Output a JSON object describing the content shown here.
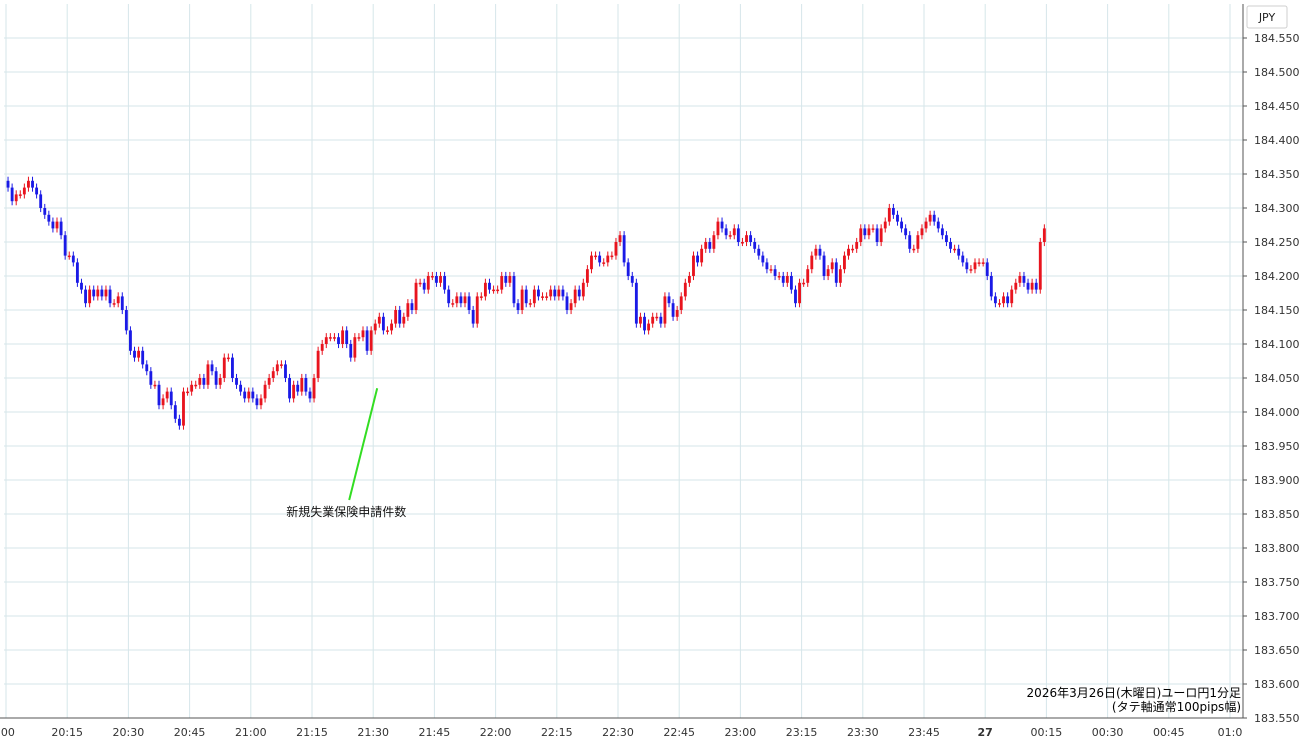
{
  "chart_data": {
    "type": "candlestick",
    "currency_label": "JPY",
    "info_lines": [
      "2026年3月26日(木曜日)ユーロ円1分足",
      "(タテ軸通常100pips幅)"
    ],
    "annotation": {
      "text": "新規失業保険申請件数",
      "time": "21:30",
      "price": 184.035
    },
    "ylim": [
      183.55,
      184.6
    ],
    "y_ticks": [
      "184.550",
      "184.500",
      "184.450",
      "184.400",
      "184.350",
      "184.300",
      "184.250",
      "184.200",
      "184.150",
      "184.100",
      "184.050",
      "184.000",
      "183.950",
      "183.900",
      "183.850",
      "183.800",
      "183.750",
      "183.700",
      "183.650",
      "183.600",
      "183.550"
    ],
    "x_ticks": [
      ":00",
      "20:15",
      "20:30",
      "20:45",
      "21:00",
      "21:15",
      "21:30",
      "21:45",
      "22:00",
      "22:15",
      "22:30",
      "22:45",
      "23:00",
      "23:15",
      "23:30",
      "23:45",
      "27",
      "00:15",
      "00:30",
      "00:45",
      "01:0"
    ],
    "x_tick_minutes": [
      0,
      15,
      30,
      45,
      60,
      75,
      90,
      105,
      120,
      135,
      150,
      165,
      180,
      195,
      210,
      225,
      240,
      255,
      270,
      285,
      300
    ],
    "start_time": "20:00",
    "colors": {
      "up": "#e8141e",
      "down": "#1a1ae6",
      "grid": "#d6e6ea",
      "annotation_line": "#33dd22",
      "axis": "#555555"
    },
    "closes": [
      184.33,
      184.31,
      184.32,
      184.32,
      184.33,
      184.34,
      184.33,
      184.32,
      184.3,
      184.29,
      184.28,
      184.27,
      184.28,
      184.26,
      184.23,
      184.23,
      184.22,
      184.19,
      184.18,
      184.16,
      184.18,
      184.17,
      184.18,
      184.17,
      184.18,
      184.16,
      184.16,
      184.17,
      184.15,
      184.12,
      184.09,
      184.08,
      184.09,
      184.07,
      184.06,
      184.04,
      184.04,
      184.01,
      184.02,
      184.03,
      184.01,
      183.99,
      183.98,
      184.03,
      184.03,
      184.04,
      184.04,
      184.05,
      184.04,
      184.07,
      184.06,
      184.04,
      184.05,
      184.08,
      184.08,
      184.05,
      184.04,
      184.03,
      184.02,
      184.03,
      184.02,
      184.01,
      184.02,
      184.04,
      184.05,
      184.06,
      184.07,
      184.07,
      184.05,
      184.02,
      184.04,
      184.03,
      184.05,
      184.03,
      184.02,
      184.05,
      184.09,
      184.1,
      184.11,
      184.11,
      184.11,
      184.1,
      184.12,
      184.1,
      184.08,
      184.11,
      184.11,
      184.12,
      184.09,
      184.12,
      184.13,
      184.14,
      184.12,
      184.12,
      184.13,
      184.15,
      184.13,
      184.14,
      184.16,
      184.15,
      184.19,
      184.19,
      184.18,
      184.2,
      184.2,
      184.19,
      184.2,
      184.18,
      184.16,
      184.16,
      184.17,
      184.16,
      184.17,
      184.15,
      184.13,
      184.17,
      184.17,
      184.19,
      184.18,
      184.18,
      184.18,
      184.2,
      184.19,
      184.2,
      184.16,
      184.15,
      184.18,
      184.16,
      184.16,
      184.18,
      184.17,
      184.17,
      184.17,
      184.18,
      184.17,
      184.18,
      184.17,
      184.15,
      184.16,
      184.18,
      184.17,
      184.19,
      184.21,
      184.23,
      184.23,
      184.22,
      184.22,
      184.23,
      184.23,
      184.25,
      184.26,
      184.22,
      184.2,
      184.19,
      184.13,
      184.14,
      184.12,
      184.13,
      184.14,
      184.14,
      184.13,
      184.17,
      184.16,
      184.14,
      184.15,
      184.17,
      184.19,
      184.2,
      184.23,
      184.22,
      184.24,
      184.25,
      184.24,
      184.26,
      184.28,
      184.27,
      184.26,
      184.26,
      184.27,
      184.25,
      184.25,
      184.26,
      184.25,
      184.24,
      184.23,
      184.22,
      184.21,
      184.21,
      184.2,
      184.2,
      184.19,
      184.2,
      184.18,
      184.16,
      184.19,
      184.19,
      184.21,
      184.23,
      184.24,
      184.23,
      184.2,
      184.21,
      184.22,
      184.19,
      184.21,
      184.23,
      184.24,
      184.24,
      184.25,
      184.27,
      184.26,
      184.27,
      184.27,
      184.25,
      184.27,
      184.28,
      184.3,
      184.29,
      184.28,
      184.27,
      184.26,
      184.24,
      184.24,
      184.26,
      184.27,
      184.28,
      184.29,
      184.28,
      184.27,
      184.26,
      184.25,
      184.24,
      184.24,
      184.23,
      184.22,
      184.21,
      184.21,
      184.22,
      184.22,
      184.22,
      184.2,
      184.17,
      184.16,
      184.16,
      184.17,
      184.16,
      184.18,
      184.19,
      184.2,
      184.19,
      184.18,
      184.19,
      184.18,
      184.25,
      184.27
    ]
  }
}
